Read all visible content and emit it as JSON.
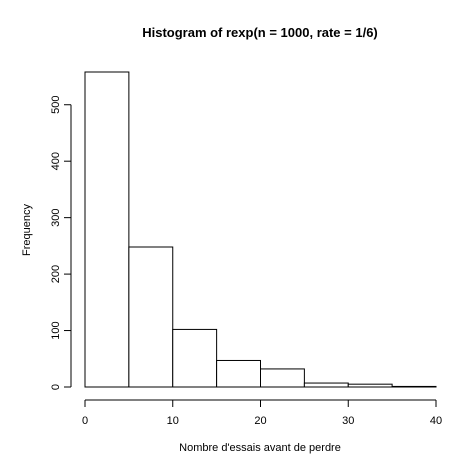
{
  "chart_data": {
    "type": "bar",
    "title": "Histogram of rexp(n = 1000, rate = 1/6)",
    "xlabel": "Nombre d'essais avant de perdre",
    "ylabel": "Frequency",
    "bins": [
      {
        "from": 0,
        "to": 5,
        "count": 558
      },
      {
        "from": 5,
        "to": 10,
        "count": 248
      },
      {
        "from": 10,
        "to": 15,
        "count": 102
      },
      {
        "from": 15,
        "to": 20,
        "count": 47
      },
      {
        "from": 20,
        "to": 25,
        "count": 32
      },
      {
        "from": 25,
        "to": 30,
        "count": 7
      },
      {
        "from": 30,
        "to": 35,
        "count": 5
      },
      {
        "from": 35,
        "to": 40,
        "count": 1
      }
    ],
    "xlim": [
      0,
      40
    ],
    "ylim": [
      0,
      558
    ],
    "x_ticks": [
      "0",
      "10",
      "20",
      "30",
      "40"
    ],
    "y_ticks": [
      "0",
      "100",
      "200",
      "300",
      "400",
      "500"
    ],
    "grid": false
  }
}
